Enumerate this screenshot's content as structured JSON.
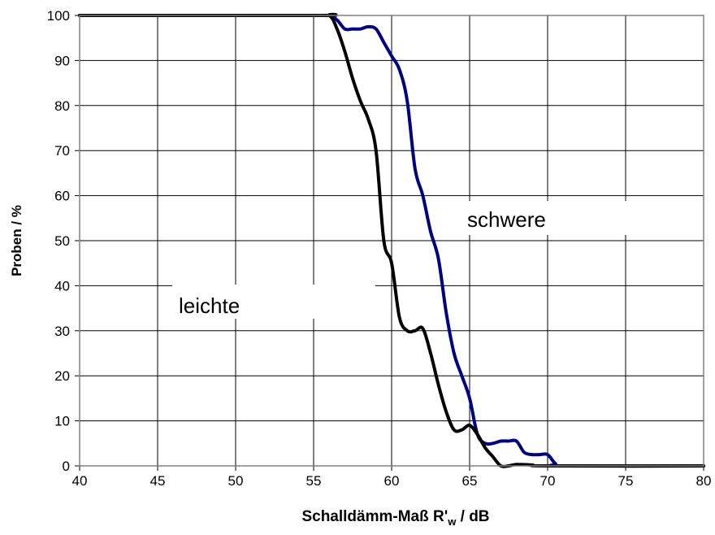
{
  "chart_data": {
    "type": "line",
    "title": "",
    "xlabel_main": "Schalldämm-Maß R'",
    "xlabel_sub": "w",
    "xlabel_unit": " / dB",
    "ylabel": "Proben / %",
    "xlim": [
      40,
      80
    ],
    "ylim": [
      0,
      100
    ],
    "xticks": [
      40,
      45,
      50,
      55,
      60,
      65,
      70,
      75,
      80
    ],
    "yticks": [
      0,
      10,
      20,
      30,
      40,
      50,
      60,
      70,
      80,
      90,
      100
    ],
    "grid": true,
    "colors": {
      "leichte": "#000000",
      "schwere": "#000080"
    },
    "annotations": {
      "schwere": "schwere",
      "leichte": "leichte"
    },
    "series": [
      {
        "name": "leichte",
        "x": [
          40,
          55,
          56,
          56.5,
          57,
          57.5,
          58,
          58.5,
          59,
          59.5,
          60,
          60.5,
          61,
          61.5,
          62,
          62.5,
          63,
          63.5,
          64,
          64.5,
          65,
          65.5,
          66,
          66.5,
          67,
          67.5,
          68,
          69,
          70,
          80
        ],
        "y": [
          100,
          100,
          100,
          97,
          92,
          86,
          81,
          77,
          70,
          50,
          45,
          33,
          30,
          30,
          30.5,
          25,
          18,
          12,
          8,
          8,
          9,
          7,
          4,
          2,
          0,
          0,
          0.3,
          0.2,
          0,
          0
        ]
      },
      {
        "name": "schwere",
        "x": [
          40,
          55,
          56,
          56.5,
          57,
          57.5,
          58,
          58.5,
          59,
          59.5,
          60,
          60.5,
          61,
          61.5,
          62,
          62.5,
          63,
          63.5,
          64,
          64.5,
          65,
          65.5,
          66,
          66.5,
          67,
          67.5,
          68,
          68.5,
          69,
          69.5,
          70,
          70.5,
          71,
          80
        ],
        "y": [
          100,
          100,
          100,
          99,
          97,
          97,
          97,
          97.5,
          97,
          94,
          91,
          88,
          81,
          66,
          60,
          52,
          46,
          34,
          25,
          20,
          15,
          7,
          5,
          5,
          5.5,
          5.5,
          5.5,
          3,
          2.5,
          2.5,
          2.5,
          0.5,
          0,
          0
        ]
      }
    ]
  }
}
